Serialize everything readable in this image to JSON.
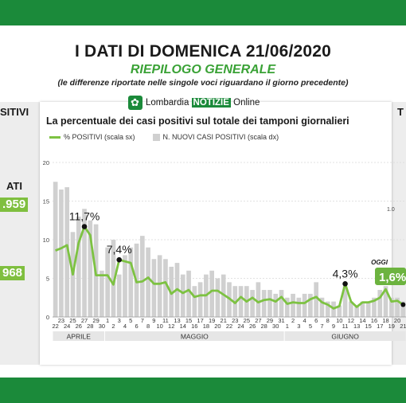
{
  "header": {
    "title": "I DATI DI DOMENICA 21/06/2020",
    "subtitle": "RIEPILOGO GENERALE",
    "note": "(le differenze riportate nelle singole voci riguardano il giorno precedente)",
    "logo": {
      "name": "Lombardia",
      "badge": "NOTIZIE",
      "suffix": "Online"
    }
  },
  "left_panel": {
    "label1": "SITIVI",
    "label2": "ATI",
    "num1": ".959",
    "num2": "968"
  },
  "right_panel": {
    "label": "T"
  },
  "colors": {
    "brand_green": "#1b8a3a",
    "line": "#7dc242",
    "bars": "#d0d0d0",
    "highlight": "#6cb33f"
  },
  "chart_data": {
    "type": "bar",
    "title": "La percentuale dei casi positivi sul totale dei tamponi giornalieri",
    "legend": [
      "% POSITIVI (scala sx)",
      "N. NUOVI CASI POSITIVI (scala dx)"
    ],
    "legend_position": "top-left",
    "grid": true,
    "ylim": [
      0,
      20
    ],
    "yticks": [
      "0",
      "5",
      "10",
      "15",
      "20"
    ],
    "right_axis_partial_tick": "1.0",
    "categories": [
      "22",
      "23",
      "24",
      "25",
      "26",
      "27",
      "28",
      "29",
      "30",
      "1",
      "2",
      "3",
      "4",
      "5",
      "6",
      "7",
      "8",
      "9",
      "10",
      "11",
      "12",
      "13",
      "14",
      "15",
      "16",
      "17",
      "18",
      "19",
      "20",
      "21",
      "22",
      "23",
      "24",
      "25",
      "26",
      "27",
      "28",
      "29",
      "30",
      "31",
      "1",
      "2",
      "3",
      "4",
      "5",
      "6",
      "7",
      "8",
      "9",
      "10",
      "11",
      "12",
      "13",
      "14",
      "15",
      "16",
      "17",
      "18",
      "19",
      "20",
      "21"
    ],
    "months": [
      {
        "label": "APRILE",
        "from": 0,
        "to": 8
      },
      {
        "label": "MAGGIO",
        "from": 9,
        "to": 39
      },
      {
        "label": "GIUGNO",
        "from": 40,
        "to": 60
      }
    ],
    "series": [
      {
        "name": "% POSITIVI (scala sx)",
        "type": "line",
        "values": [
          8.6,
          8.9,
          9.3,
          5.5,
          9.6,
          11.7,
          10.6,
          5.4,
          5.4,
          5.4,
          4.2,
          7.4,
          7.2,
          7.0,
          4.5,
          4.6,
          5.1,
          4.3,
          4.3,
          4.5,
          3.0,
          3.6,
          3.1,
          3.5,
          2.6,
          2.8,
          2.8,
          3.4,
          3.4,
          2.9,
          2.4,
          1.8,
          2.6,
          2.0,
          2.5,
          1.9,
          2.2,
          2.3,
          2.0,
          2.6,
          1.7,
          1.9,
          1.8,
          1.8,
          2.3,
          2.6,
          1.9,
          1.6,
          1.1,
          1.4,
          4.3,
          2.0,
          1.3,
          1.9,
          1.9,
          2.1,
          2.5,
          3.6,
          2.0,
          2.1,
          1.6
        ]
      },
      {
        "name": "N. NUOVI CASI POSITIVI (scala dx)",
        "type": "bar",
        "axis": "right",
        "values": [
          17.5,
          16.5,
          16.8,
          11.0,
          13.0,
          14.0,
          12.5,
          12.0,
          6.0,
          9.0,
          10.0,
          5.5,
          8.0,
          9.0,
          9.5,
          10.5,
          9.0,
          7.5,
          8.0,
          7.5,
          6.5,
          7.0,
          5.5,
          6.0,
          4.0,
          4.5,
          5.5,
          6.0,
          5.0,
          5.5,
          4.5,
          4.0,
          4.0,
          4.0,
          3.5,
          4.5,
          3.5,
          3.5,
          3.0,
          3.5,
          2.5,
          3.0,
          2.5,
          3.0,
          3.0,
          4.5,
          2.5,
          2.0,
          2.0,
          1.5,
          4.0,
          2.0,
          1.5,
          2.0,
          2.0,
          2.5,
          3.5,
          4.0,
          2.5,
          2.5,
          2.0
        ]
      }
    ],
    "annotations": [
      {
        "index": 5,
        "label": "11,7%"
      },
      {
        "index": 11,
        "label": "7,4%"
      },
      {
        "index": 50,
        "label": "4,3%"
      }
    ],
    "today": {
      "label": "OGGI",
      "value": "1,6%",
      "index": 60
    }
  }
}
